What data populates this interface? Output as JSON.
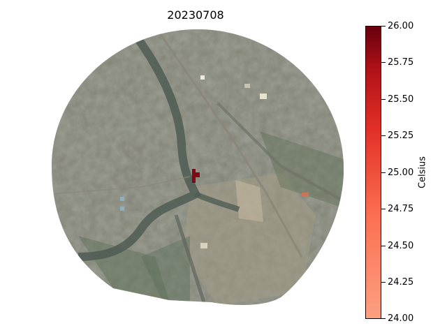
{
  "figure": {
    "title": "20230708"
  },
  "colorbar": {
    "label": "Celsius",
    "min": 24.0,
    "max": 26.0,
    "colormap": "Reds",
    "color_low": "#fca082",
    "color_high": "#67000d",
    "ticks": [
      "24.00",
      "24.25",
      "24.50",
      "24.75",
      "25.00",
      "25.25",
      "25.50",
      "25.75",
      "26.00"
    ]
  },
  "map": {
    "hotspot_value": 26.0,
    "hotspot_color": "#7f0a14"
  }
}
